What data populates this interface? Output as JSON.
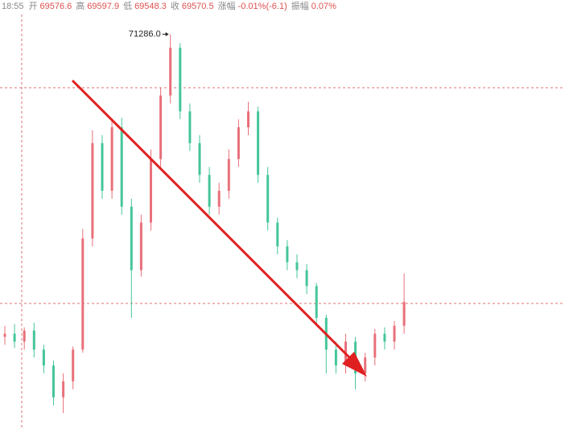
{
  "chart_data": {
    "type": "candlestick",
    "header": [
      {
        "label": "18:55"
      },
      {
        "label": "开",
        "value": "69576.6"
      },
      {
        "label": "高",
        "value": "69597.9"
      },
      {
        "label": "低",
        "value": "69548.3"
      },
      {
        "label": "收",
        "value": "69570.5"
      },
      {
        "label": "涨幅",
        "value": "-0.01%(-6.1)"
      },
      {
        "label": "振幅",
        "value": "0.07%"
      }
    ],
    "annotation": "71286.0",
    "up_color": "#e8707a",
    "down_color": "#45c59a",
    "ylim": [
      68800,
      71400
    ],
    "open": [
      69380,
      69400,
      69350,
      69420,
      69300,
      69200,
      69000,
      69100,
      69300,
      70000,
      70600,
      70300,
      70700,
      70200,
      69800,
      70100,
      70500,
      70900,
      71200,
      70800,
      70600,
      70400,
      70200,
      70300,
      70500,
      70700,
      70800,
      70400,
      70100,
      69950,
      69850,
      69800,
      69700,
      69500,
      69300,
      69200,
      69350,
      69150,
      69250,
      69400,
      69350,
      69450
    ],
    "high": [
      69450,
      69460,
      69440,
      69470,
      69330,
      69230,
      69150,
      69320,
      70060,
      70680,
      70650,
      70750,
      70760,
      70250,
      70150,
      70560,
      70950,
      71286,
      71230,
      70850,
      70650,
      70450,
      70350,
      70560,
      70750,
      70860,
      70830,
      70450,
      70130,
      69990,
      69900,
      69840,
      69720,
      69520,
      69350,
      69400,
      69380,
      69280,
      69430,
      69440,
      69480,
      69780
    ],
    "low": [
      69330,
      69310,
      69300,
      69250,
      69150,
      68950,
      68900,
      69050,
      69280,
      69950,
      70250,
      70250,
      70150,
      69500,
      69760,
      70050,
      70450,
      70850,
      70750,
      70550,
      70350,
      70150,
      70150,
      70250,
      70450,
      70650,
      70350,
      70050,
      69900,
      69800,
      69750,
      69650,
      69450,
      69150,
      69150,
      69150,
      69050,
      69100,
      69200,
      69300,
      69300,
      69400
    ],
    "close": [
      69400,
      69350,
      69420,
      69300,
      69200,
      69000,
      69100,
      69300,
      70000,
      70600,
      70300,
      70700,
      70200,
      69800,
      70100,
      70500,
      70900,
      71200,
      70800,
      70600,
      70400,
      70200,
      70300,
      70500,
      70700,
      70800,
      70400,
      70100,
      69950,
      69850,
      69800,
      69700,
      69500,
      69300,
      69200,
      69350,
      69150,
      69250,
      69400,
      69350,
      69450,
      69600
    ]
  }
}
